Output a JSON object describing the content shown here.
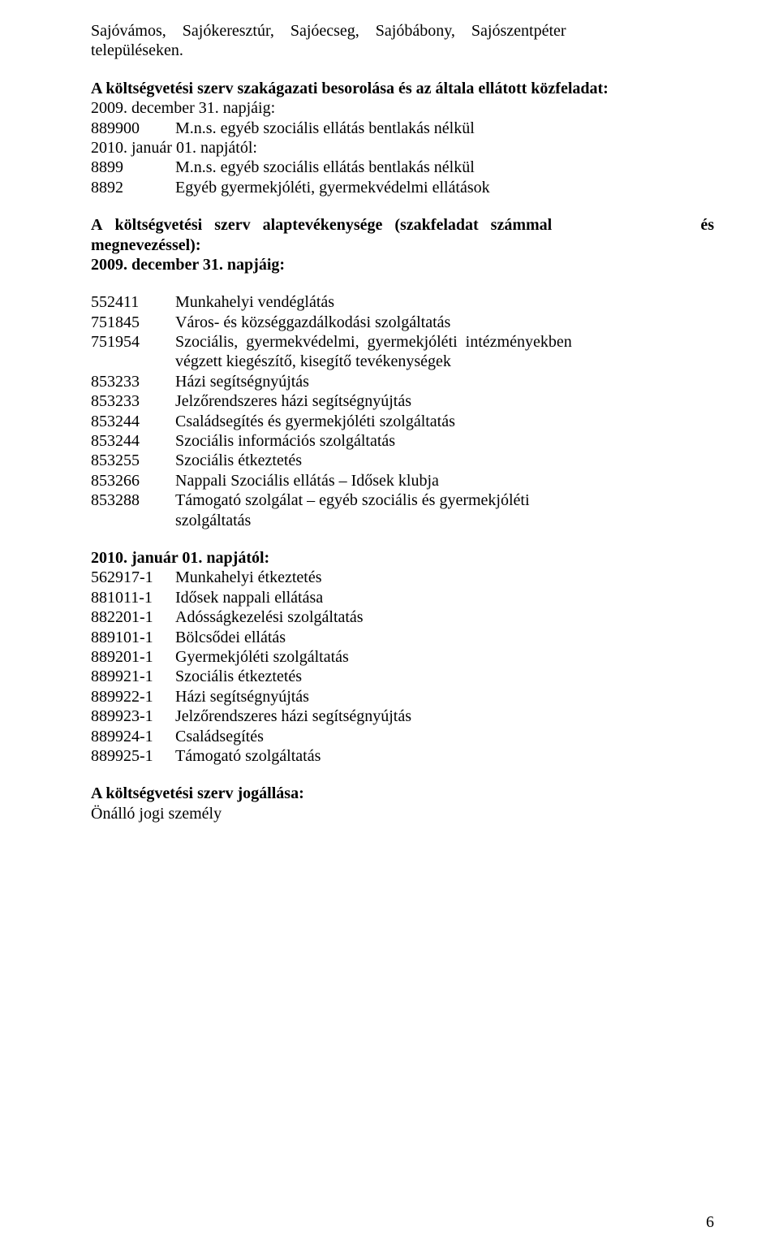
{
  "p1_line1": "Sajóvámos,    Sajókeresztúr,    Sajóecseg,    Sajóbábony,    Sajószentpéter",
  "p1_line2": "településeken.",
  "h1": "A költségvetési szerv szakágazati besorolása és az általa ellátott közfeladat:",
  "p2a": "2009. december 31. napjáig:",
  "code_889900": "889900",
  "desc_889900": "M.n.s. egyéb szociális ellátás bentlakás nélkül",
  "p2b": "2010. január 01. napjától:",
  "code_8899": "8899",
  "desc_8899": "M.n.s. egyéb szociális ellátás bentlakás nélkül",
  "code_8892": "8892",
  "desc_8892": "Egyéb gyermekjóléti, gyermekvédelmi ellátások",
  "h2_l1_left": "A   költségvetési   szerv   alaptevékenysége   (szakfeladat   számmal",
  "h2_l1_right": "és",
  "h2_l2": "megnevezéssel):",
  "h2_l3": "2009. december 31. napjáig:",
  "s1": [
    {
      "c": "552411",
      "d": "Munkahelyi vendéglátás"
    },
    {
      "c": "751845",
      "d": "Város- és községgazdálkodási szolgáltatás"
    },
    {
      "c": "751954",
      "d": "Szociális,  gyermekvédelmi,  gyermekjóléti  intézményekben"
    }
  ],
  "s1_cont": "végzett kiegészítő, kisegítő tevékenységek",
  "s1b": [
    {
      "c": "853233",
      "d": "Házi segítségnyújtás"
    },
    {
      "c": "853233",
      "d": "Jelzőrendszeres házi segítségnyújtás"
    },
    {
      "c": "853244",
      "d": "Családsegítés és gyermekjóléti szolgáltatás"
    },
    {
      "c": "853244",
      "d": "Szociális információs szolgáltatás"
    },
    {
      "c": "853255",
      "d": "Szociális étkeztetés"
    },
    {
      "c": "853266",
      "d": "Nappali Szociális ellátás – Idősek klubja"
    },
    {
      "c": "853288",
      "d": "Támogató szolgálat – egyéb szociális és gyermekjóléti"
    }
  ],
  "s1b_cont": "szolgáltatás",
  "h3": "2010. január 01. napjától:",
  "s2": [
    {
      "c": "562917-1",
      "d": "Munkahelyi étkeztetés"
    },
    {
      "c": "881011-1",
      "d": "Idősek nappali ellátása"
    },
    {
      "c": "882201-1",
      "d": "Adósságkezelési szolgáltatás"
    },
    {
      "c": "889101-1",
      "d": "Bölcsődei ellátás"
    },
    {
      "c": "889201-1",
      "d": "Gyermekjóléti szolgáltatás"
    },
    {
      "c": "889921-1",
      "d": "Szociális étkeztetés"
    },
    {
      "c": "889922-1",
      "d": "Házi segítségnyújtás"
    },
    {
      "c": "889923-1",
      "d": "Jelzőrendszeres házi segítségnyújtás"
    },
    {
      "c": "889924-1",
      "d": "Családsegítés"
    },
    {
      "c": "889925-1",
      "d": "Támogató szolgáltatás"
    }
  ],
  "h4": "A költségvetési szerv jogállása:",
  "p_last": "Önálló jogi személy",
  "page_number": "6"
}
